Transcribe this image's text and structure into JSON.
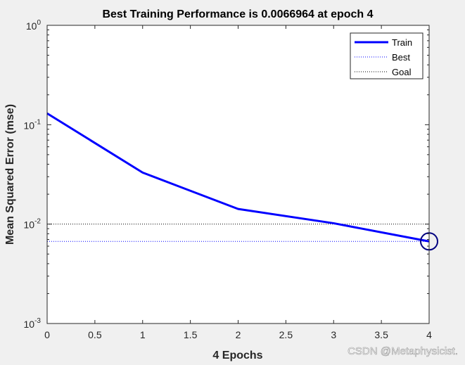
{
  "chart_data": {
    "type": "line",
    "title": "Best Training Performance is 0.0066964 at epoch 4",
    "xlabel": "4 Epochs",
    "ylabel": "Mean Squared Error  (mse)",
    "xlim": [
      0,
      4
    ],
    "ylim": [
      0.001,
      1
    ],
    "yscale": "log",
    "x_ticks": [
      "0",
      "0.5",
      "1",
      "1.5",
      "2",
      "2.5",
      "3",
      "3.5",
      "4"
    ],
    "y_ticks": [
      {
        "base": "10",
        "exp": "0"
      },
      {
        "base": "10",
        "exp": "-1"
      },
      {
        "base": "10",
        "exp": "-2"
      },
      {
        "base": "10",
        "exp": "-3"
      }
    ],
    "series": [
      {
        "name": "Train",
        "x": [
          0,
          1,
          2,
          3,
          4
        ],
        "values": [
          0.13,
          0.033,
          0.0142,
          0.0102,
          0.0066964
        ],
        "color": "#0000ff"
      }
    ],
    "best": {
      "name": "Best",
      "value": 0.0066964,
      "epoch": 4,
      "color": "#0000ff"
    },
    "goal": {
      "name": "Goal",
      "value": 0.01,
      "color": "#000000"
    },
    "legend": {
      "position": "top-right",
      "entries": [
        "Train",
        "Best",
        "Goal"
      ]
    },
    "grid": false
  },
  "watermark": "CSDN @Metaphysicist."
}
